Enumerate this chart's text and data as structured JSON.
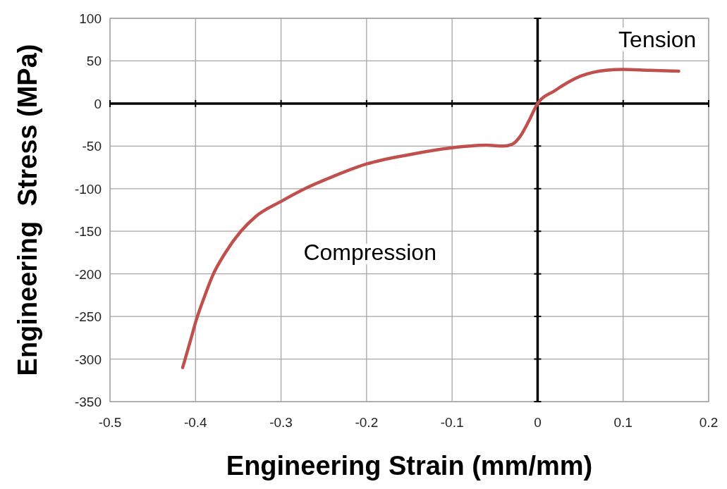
{
  "chart_data": {
    "type": "line",
    "xlabel": "Engineering Strain (mm/mm)",
    "ylabel": "Engineering  Stress (MPa)",
    "xlim": [
      -0.5,
      0.2
    ],
    "ylim": [
      -350,
      100
    ],
    "xticks": [
      -0.5,
      -0.4,
      -0.3,
      -0.2,
      -0.1,
      0,
      0.1,
      0.2
    ],
    "yticks": [
      -350,
      -300,
      -250,
      -200,
      -150,
      -100,
      -50,
      0,
      50,
      100
    ],
    "grid": true,
    "marker": "none",
    "line_style": "solid",
    "annotations": [
      "Tension",
      "Compression"
    ],
    "series": [
      {
        "color": "#c0504d",
        "x": [
          -0.415,
          -0.405,
          -0.4,
          -0.39,
          -0.38,
          -0.365,
          -0.347,
          -0.33,
          -0.3,
          -0.27,
          -0.24,
          -0.2,
          -0.15,
          -0.1,
          -0.06,
          -0.04,
          -0.03,
          -0.02,
          -0.01,
          0,
          0.02,
          0.05,
          0.08,
          0.1,
          0.13,
          0.165
        ],
        "values": [
          -310,
          -275,
          -257,
          -228,
          -202,
          -175,
          -150,
          -133,
          -115,
          -99,
          -86,
          -71,
          -60,
          -52,
          -49,
          -50,
          -48,
          -38,
          -20,
          0,
          15,
          32,
          39,
          40,
          39,
          38
        ]
      }
    ]
  }
}
